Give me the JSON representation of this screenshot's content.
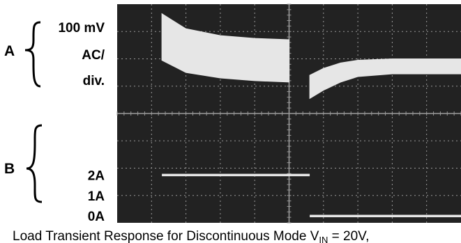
{
  "chart_data": {
    "type": "line",
    "title": "",
    "caption": {
      "main": "Load Transient Response for Discontinuous Mode V",
      "subscript": "IN",
      "tail": " = 20V,"
    },
    "channels": [
      {
        "id": "A",
        "label": "A",
        "scale_lines": [
          "100 mV",
          "AC/",
          "div."
        ],
        "series": {
          "name": "A",
          "x": [
            1.3,
            2.0,
            3.0,
            4.0,
            5.0,
            5.6,
            6.0,
            6.5,
            7.0,
            8.0,
            9.0,
            10.0
          ],
          "upper": [
            2.05,
            2.5,
            2.7,
            2.8,
            2.85,
            3.45,
            3.15,
            2.85,
            2.65,
            2.55,
            2.55,
            2.55
          ],
          "lower": [
            0.35,
            0.9,
            1.15,
            1.25,
            1.3,
            2.6,
            2.35,
            2.15,
            2.05,
            2.0,
            2.0,
            2.0
          ]
        }
      },
      {
        "id": "B",
        "label": "B",
        "tick_labels": [
          "2A",
          "1A",
          "0A"
        ],
        "tick_values": [
          2,
          1,
          0
        ],
        "series": {
          "name": "B",
          "x": [
            1.3,
            5.6,
            5.6,
            10.0
          ],
          "y": [
            2,
            2,
            0,
            0
          ]
        }
      }
    ],
    "grid": true,
    "divisions": {
      "x": 10,
      "y": 8
    },
    "colors": {
      "screen": "#222222",
      "trace": "#e6e6e6",
      "grid": "#9a9a9a"
    }
  }
}
